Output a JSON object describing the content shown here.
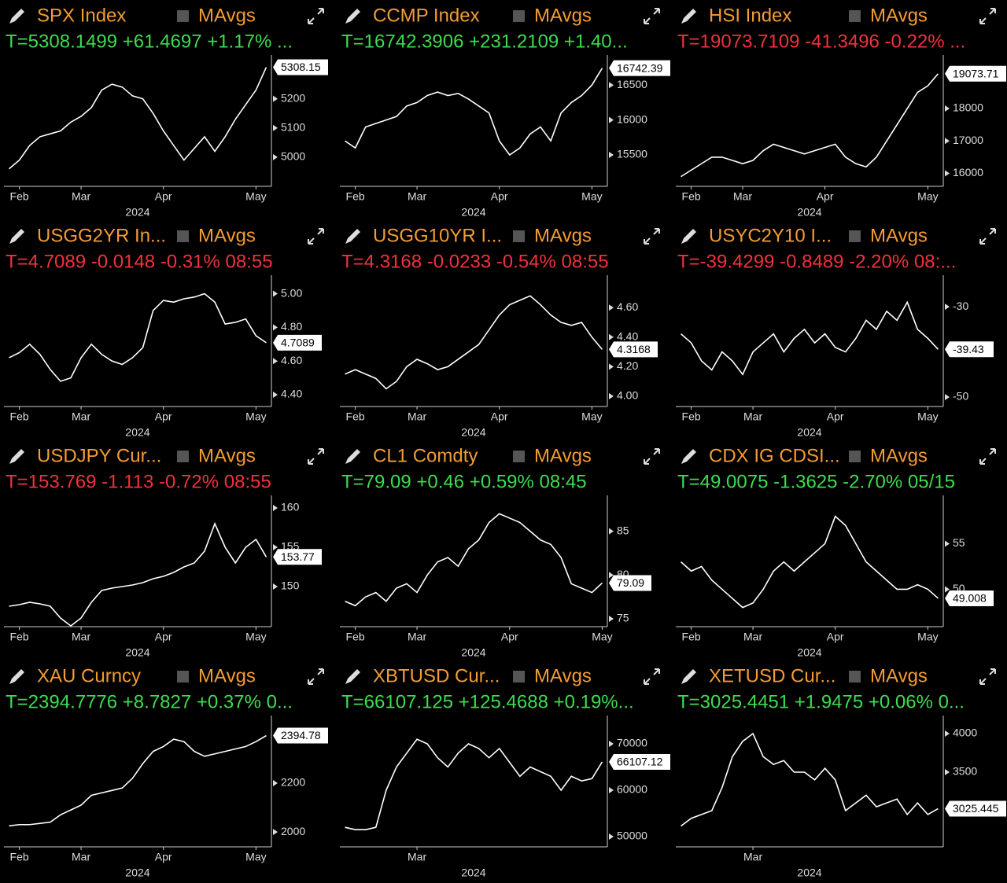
{
  "chart_data": [
    {
      "type": "line",
      "title": "SPX Index",
      "title_color": "#f39c34",
      "toggle_label": "MAvgs",
      "subtitle": "T=5308.1499 +61.4697 +1.17% ...",
      "subtitle_color": "#3ddc4f",
      "xlabel": "2024",
      "color": "#ffffff",
      "categories": [
        null,
        "Feb",
        null,
        null,
        null,
        null,
        null,
        "Mar",
        null,
        null,
        null,
        null,
        null,
        null,
        null,
        "Apr",
        null,
        null,
        null,
        null,
        null,
        null,
        null,
        null,
        "May",
        null
      ],
      "values": [
        4960,
        4990,
        5040,
        5070,
        5080,
        5090,
        5120,
        5140,
        5170,
        5230,
        5250,
        5240,
        5210,
        5200,
        5150,
        5090,
        5040,
        4990,
        5030,
        5070,
        5020,
        5070,
        5130,
        5180,
        5230,
        5308.1499
      ],
      "value_labels": [
        null,
        null,
        null,
        null,
        null,
        null,
        null,
        null,
        null,
        null,
        null,
        null,
        null,
        null,
        null,
        null,
        null,
        null,
        null,
        null,
        null,
        null,
        null,
        null,
        null,
        "5308.15"
      ],
      "ylim": [
        4900,
        5350
      ],
      "yticks": [
        5000,
        5100,
        5200
      ]
    },
    {
      "type": "line",
      "title": "CCMP Index",
      "title_color": "#f39c34",
      "toggle_label": "MAvgs",
      "subtitle": "T=16742.3906 +231.2109 +1.40...",
      "subtitle_color": "#3ddc4f",
      "xlabel": "2024",
      "color": "#ffffff",
      "categories": [
        null,
        "Feb",
        null,
        null,
        null,
        null,
        null,
        "Mar",
        null,
        null,
        null,
        null,
        null,
        null,
        null,
        "Apr",
        null,
        null,
        null,
        null,
        null,
        null,
        null,
        null,
        "May",
        null
      ],
      "values": [
        15700,
        15600,
        15900,
        15950,
        16000,
        16050,
        16200,
        16250,
        16350,
        16400,
        16350,
        16380,
        16300,
        16200,
        16100,
        15700,
        15500,
        15600,
        15800,
        15900,
        15700,
        16100,
        16250,
        16350,
        16500,
        16742.3906
      ],
      "value_labels": [
        null,
        null,
        null,
        null,
        null,
        null,
        null,
        null,
        null,
        null,
        null,
        null,
        null,
        null,
        null,
        null,
        null,
        null,
        null,
        null,
        null,
        null,
        null,
        null,
        null,
        "16742.39"
      ],
      "ylim": [
        15050,
        16930
      ],
      "yticks": [
        15500,
        16000,
        16500
      ]
    },
    {
      "type": "line",
      "title": "HSI Index",
      "title_color": "#f39c34",
      "toggle_label": "MAvgs",
      "subtitle": "T=19073.7109 -41.3496 -0.22% ...",
      "subtitle_color": "#f0323c",
      "xlabel": "2024",
      "color": "#ffffff",
      "categories": [
        null,
        "Feb",
        null,
        null,
        null,
        null,
        "Mar",
        null,
        null,
        null,
        null,
        null,
        null,
        null,
        "Apr",
        null,
        null,
        null,
        null,
        null,
        null,
        null,
        null,
        null,
        "May",
        null
      ],
      "values": [
        15900,
        16100,
        16300,
        16500,
        16500,
        16400,
        16300,
        16400,
        16700,
        16900,
        16800,
        16700,
        16600,
        16700,
        16800,
        16900,
        16500,
        16300,
        16200,
        16500,
        17000,
        17500,
        18000,
        18500,
        18700,
        19073.7109
      ],
      "value_labels": [
        null,
        null,
        null,
        null,
        null,
        null,
        null,
        null,
        null,
        null,
        null,
        null,
        null,
        null,
        null,
        null,
        null,
        null,
        null,
        null,
        null,
        null,
        null,
        null,
        null,
        "19073.71"
      ],
      "ylim": [
        15600,
        19650
      ],
      "yticks": [
        16000,
        17000,
        18000
      ]
    },
    {
      "type": "line",
      "title": "USGG2YR In...",
      "title_color": "#f39c34",
      "toggle_label": "MAvgs",
      "subtitle": "T=4.7089 -0.0148 -0.31% 08:55",
      "subtitle_color": "#f0323c",
      "xlabel": "2024",
      "color": "#ffffff",
      "categories": [
        null,
        "Feb",
        null,
        null,
        null,
        null,
        null,
        "Mar",
        null,
        null,
        null,
        null,
        null,
        null,
        null,
        "Apr",
        null,
        null,
        null,
        null,
        null,
        null,
        null,
        null,
        "May",
        null
      ],
      "values": [
        4.62,
        4.65,
        4.7,
        4.64,
        4.55,
        4.48,
        4.5,
        4.62,
        4.7,
        4.64,
        4.6,
        4.58,
        4.62,
        4.68,
        4.9,
        4.96,
        4.95,
        4.97,
        4.98,
        5.0,
        4.95,
        4.82,
        4.83,
        4.85,
        4.75,
        4.7089
      ],
      "value_labels": [
        null,
        null,
        null,
        null,
        null,
        null,
        null,
        null,
        null,
        null,
        null,
        null,
        null,
        null,
        null,
        null,
        null,
        null,
        null,
        null,
        null,
        null,
        null,
        null,
        null,
        "4.7089"
      ],
      "ylim": [
        4.33,
        5.11
      ],
      "yticks": [
        {
          "value": 4.4,
          "label": "4.40"
        },
        {
          "value": 4.6,
          "label": "4.60"
        },
        {
          "value": 4.8,
          "label": "4.80"
        },
        {
          "value": 5,
          "label": "5.00"
        }
      ]
    },
    {
      "type": "line",
      "title": "USGG10YR I...",
      "title_color": "#f39c34",
      "toggle_label": "MAvgs",
      "subtitle": "T=4.3168 -0.0233 -0.54% 08:55",
      "subtitle_color": "#f0323c",
      "xlabel": "2024",
      "color": "#ffffff",
      "categories": [
        null,
        "Feb",
        null,
        null,
        null,
        null,
        null,
        "Mar",
        null,
        null,
        null,
        null,
        null,
        null,
        null,
        "Apr",
        null,
        null,
        null,
        null,
        null,
        null,
        null,
        null,
        "May",
        null
      ],
      "values": [
        4.15,
        4.18,
        4.15,
        4.12,
        4.05,
        4.1,
        4.2,
        4.25,
        4.22,
        4.18,
        4.2,
        4.25,
        4.3,
        4.35,
        4.45,
        4.55,
        4.62,
        4.65,
        4.68,
        4.62,
        4.55,
        4.5,
        4.48,
        4.5,
        4.4,
        4.3168
      ],
      "value_labels": [
        null,
        null,
        null,
        null,
        null,
        null,
        null,
        null,
        null,
        null,
        null,
        null,
        null,
        null,
        null,
        null,
        null,
        null,
        null,
        null,
        null,
        null,
        null,
        null,
        null,
        "4.3168"
      ],
      "ylim": [
        3.93,
        4.82
      ],
      "yticks": [
        {
          "value": 4,
          "label": "4.00"
        },
        {
          "value": 4.2,
          "label": "4.20"
        },
        {
          "value": 4.4,
          "label": "4.40"
        },
        {
          "value": 4.6,
          "label": "4.60"
        }
      ]
    },
    {
      "type": "line",
      "title": "USYC2Y10 I...",
      "title_color": "#f39c34",
      "toggle_label": "MAvgs",
      "subtitle": "T=-39.4299 -0.8489 -2.20% 08:...",
      "subtitle_color": "#f0323c",
      "xlabel": "2024",
      "color": "#ffffff",
      "categories": [
        null,
        "Feb",
        null,
        null,
        null,
        null,
        null,
        "Mar",
        null,
        null,
        null,
        null,
        null,
        null,
        null,
        "Apr",
        null,
        null,
        null,
        null,
        null,
        null,
        null,
        null,
        "May",
        null
      ],
      "values": [
        -36,
        -38,
        -42,
        -44,
        -40,
        -42,
        -45,
        -40,
        -38,
        -36,
        -40,
        -37,
        -35,
        -38,
        -36,
        -39,
        -40,
        -37,
        -33,
        -35,
        -31,
        -33,
        -29,
        -35,
        -37,
        -39.4299
      ],
      "value_labels": [
        null,
        null,
        null,
        null,
        null,
        null,
        null,
        null,
        null,
        null,
        null,
        null,
        null,
        null,
        null,
        null,
        null,
        null,
        null,
        null,
        null,
        null,
        null,
        null,
        null,
        "-39.43"
      ],
      "ylim": [
        -52.1,
        -23
      ],
      "yticks": [
        -50,
        -30
      ]
    },
    {
      "type": "line",
      "title": "USDJPY Cur...",
      "title_color": "#f39c34",
      "toggle_label": "MAvgs",
      "subtitle": "T=153.769 -1.113 -0.72% 08:55",
      "subtitle_color": "#f0323c",
      "xlabel": "2024",
      "color": "#ffffff",
      "categories": [
        null,
        "Feb",
        null,
        null,
        null,
        null,
        null,
        "Mar",
        null,
        null,
        null,
        null,
        null,
        null,
        null,
        "Apr",
        null,
        null,
        null,
        null,
        null,
        null,
        null,
        null,
        "May",
        null
      ],
      "values": [
        147.5,
        147.7,
        148,
        147.8,
        147.5,
        146,
        145,
        146,
        148,
        149.5,
        149.8,
        150,
        150.2,
        150.5,
        151,
        151.3,
        151.8,
        152.5,
        153,
        154.5,
        158,
        155,
        153,
        155,
        156,
        153.769
      ],
      "value_labels": [
        null,
        null,
        null,
        null,
        null,
        null,
        null,
        null,
        null,
        null,
        null,
        null,
        null,
        null,
        null,
        null,
        null,
        null,
        null,
        null,
        null,
        null,
        null,
        null,
        null,
        "153.77"
      ],
      "ylim": [
        144.9,
        161.6
      ],
      "yticks": [
        150,
        155,
        160
      ]
    },
    {
      "type": "line",
      "title": "CL1 Comdty",
      "title_color": "#f39c34",
      "toggle_label": "MAvgs",
      "subtitle": "T=79.09 +0.46 +0.59% 08:45",
      "subtitle_color": "#3ddc4f",
      "xlabel": "2024",
      "color": "#ffffff",
      "categories": [
        null,
        "Feb",
        null,
        null,
        null,
        null,
        null,
        "Mar",
        null,
        null,
        null,
        null,
        null,
        null,
        null,
        null,
        "Apr",
        null,
        null,
        null,
        null,
        null,
        null,
        null,
        null,
        "May"
      ],
      "values": [
        77,
        76.5,
        77.5,
        78,
        77,
        78.5,
        79,
        78,
        80,
        81.5,
        82,
        81,
        83,
        84,
        86,
        87,
        86.5,
        86,
        85,
        84,
        83.5,
        82,
        79,
        78.5,
        78,
        79.09
      ],
      "value_labels": [
        null,
        null,
        null,
        null,
        null,
        null,
        null,
        null,
        null,
        null,
        null,
        null,
        null,
        null,
        null,
        null,
        null,
        null,
        null,
        null,
        null,
        null,
        null,
        null,
        null,
        "79.09"
      ],
      "ylim": [
        74.1,
        89.1
      ],
      "yticks": [
        75,
        80,
        85
      ]
    },
    {
      "type": "line",
      "title": "CDX IG CDSI...",
      "title_color": "#f39c34",
      "toggle_label": "MAvgs",
      "subtitle": "T=49.0075 -1.3625 -2.70% 05/15",
      "subtitle_color": "#3ddc4f",
      "xlabel": "2024",
      "color": "#ffffff",
      "categories": [
        null,
        "Feb",
        null,
        null,
        null,
        null,
        null,
        "Mar",
        null,
        null,
        null,
        null,
        null,
        null,
        null,
        "Apr",
        null,
        null,
        null,
        null,
        null,
        null,
        null,
        null,
        "May",
        null
      ],
      "values": [
        53,
        52,
        52.5,
        51,
        50,
        49,
        48,
        48.5,
        50,
        52,
        53,
        52,
        53,
        54,
        55,
        58,
        57,
        55,
        53,
        52,
        51,
        50,
        50,
        50.5,
        50,
        49.0075
      ],
      "value_labels": [
        null,
        null,
        null,
        null,
        null,
        null,
        null,
        null,
        null,
        null,
        null,
        null,
        null,
        null,
        null,
        null,
        null,
        null,
        null,
        null,
        null,
        null,
        null,
        null,
        null,
        "49.008"
      ],
      "ylim": [
        45.9,
        60.3
      ],
      "yticks": [
        50,
        55
      ]
    },
    {
      "type": "line",
      "title": "XAU Curncy",
      "title_color": "#f39c34",
      "toggle_label": "MAvgs",
      "subtitle": "T=2394.7776 +8.7827 +0.37% 0...",
      "subtitle_color": "#3ddc4f",
      "xlabel": "2024",
      "color": "#ffffff",
      "categories": [
        null,
        "Feb",
        null,
        null,
        null,
        null,
        null,
        "Mar",
        null,
        null,
        null,
        null,
        null,
        null,
        null,
        "Apr",
        null,
        null,
        null,
        null,
        null,
        null,
        null,
        null,
        "May",
        null
      ],
      "values": [
        2025,
        2030,
        2030,
        2035,
        2040,
        2070,
        2090,
        2110,
        2150,
        2160,
        2170,
        2180,
        2220,
        2280,
        2330,
        2350,
        2380,
        2370,
        2330,
        2310,
        2320,
        2330,
        2340,
        2350,
        2370,
        2394.7776
      ],
      "value_labels": [
        null,
        null,
        null,
        null,
        null,
        null,
        null,
        null,
        null,
        null,
        null,
        null,
        null,
        null,
        null,
        null,
        null,
        null,
        null,
        null,
        null,
        null,
        null,
        null,
        null,
        "2394.78"
      ],
      "ylim": [
        1939,
        2477
      ],
      "yticks": [
        2000,
        2200
      ]
    },
    {
      "type": "line",
      "title": "XBTUSD Cur...",
      "title_color": "#f39c34",
      "toggle_label": "MAvgs",
      "subtitle": "T=66107.125 +125.4688 +0.19%...",
      "subtitle_color": "#3ddc4f",
      "xlabel": "2024",
      "color": "#ffffff",
      "categories": [
        null,
        null,
        null,
        null,
        null,
        null,
        null,
        "Mar",
        null,
        null,
        null,
        null,
        null,
        null,
        null,
        null,
        null,
        null,
        null,
        null,
        null,
        null,
        null,
        null,
        null,
        null
      ],
      "values": [
        52000,
        51500,
        51500,
        52000,
        60000,
        65000,
        68000,
        71000,
        70000,
        67000,
        65000,
        68000,
        70000,
        69000,
        67000,
        69000,
        66000,
        63000,
        65000,
        64000,
        63000,
        60000,
        63000,
        62000,
        62500,
        66107.125
      ],
      "value_labels": [
        null,
        null,
        null,
        null,
        null,
        null,
        null,
        null,
        null,
        null,
        null,
        null,
        null,
        null,
        null,
        null,
        null,
        null,
        null,
        null,
        null,
        null,
        null,
        null,
        null,
        "66107.12"
      ],
      "ylim": [
        47800,
        76100
      ],
      "yticks": [
        50000,
        60000,
        70000
      ]
    },
    {
      "type": "line",
      "title": "XETUSD Cur...",
      "title_color": "#f39c34",
      "toggle_label": "MAvgs",
      "subtitle": "T=3025.4451 +1.9475 +0.06% 0...",
      "subtitle_color": "#3ddc4f",
      "xlabel": "2024",
      "color": "#ffffff",
      "categories": [
        null,
        null,
        null,
        null,
        null,
        null,
        null,
        "Mar",
        null,
        null,
        null,
        null,
        null,
        null,
        null,
        null,
        null,
        null,
        null,
        null,
        null,
        null,
        null,
        null,
        null,
        null
      ],
      "values": [
        2800,
        2900,
        2950,
        3000,
        3300,
        3700,
        3900,
        4000,
        3700,
        3600,
        3650,
        3500,
        3500,
        3400,
        3550,
        3400,
        3000,
        3100,
        3200,
        3050,
        3100,
        3150,
        2950,
        3100,
        2950,
        3025.4451
      ],
      "value_labels": [
        null,
        null,
        null,
        null,
        null,
        null,
        null,
        null,
        null,
        null,
        null,
        null,
        null,
        null,
        null,
        null,
        null,
        null,
        null,
        null,
        null,
        null,
        null,
        null,
        null,
        "3025.445"
      ],
      "ylim": [
        2530,
        4235
      ],
      "yticks": [
        3500,
        4000
      ]
    }
  ]
}
